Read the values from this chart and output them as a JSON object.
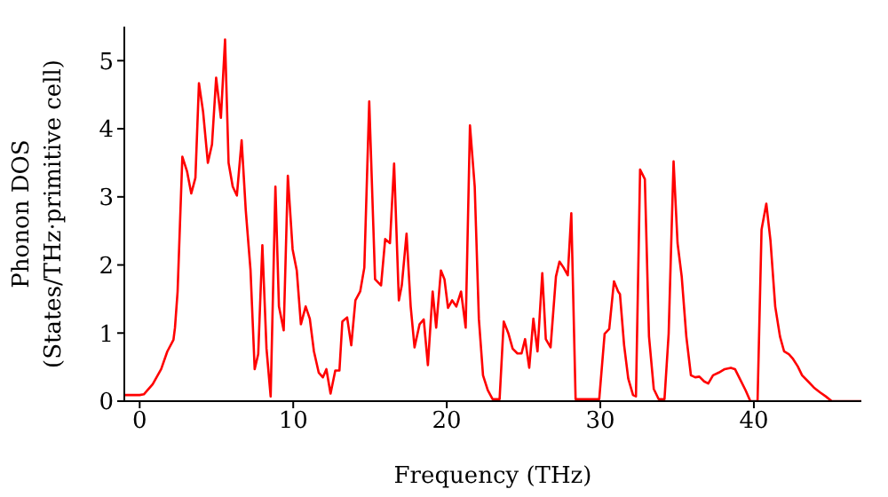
{
  "chart_data": {
    "type": "line",
    "xlabel": "Frequency (THz)",
    "ylabel": "Phonon DOS\n(States/THz·primitive cell)",
    "xlim": [
      -1,
      47
    ],
    "xticks": [
      0,
      10,
      20,
      30,
      40
    ],
    "ylim": [
      0,
      5.5
    ],
    "yticks": [
      0,
      1,
      2,
      3,
      4,
      5
    ],
    "grid": false,
    "legend": false,
    "marker": "none",
    "line_style": "solid",
    "series": [
      {
        "color": "#ff0000",
        "x": [
          -1,
          0,
          0.27,
          0.85,
          1.4,
          1.8,
          2.2,
          2.3,
          2.47,
          2.78,
          3.09,
          3.36,
          3.63,
          3.86,
          4.13,
          4.44,
          4.71,
          4.98,
          5.29,
          5.56,
          5.79,
          6.06,
          6.33,
          6.64,
          6.91,
          7.22,
          7.49,
          7.72,
          7.99,
          8.26,
          8.53,
          8.84,
          9.07,
          9.38,
          9.65,
          9.96,
          10.23,
          10.5,
          10.81,
          11.08,
          11.35,
          11.66,
          11.93,
          12.16,
          12.43,
          12.74,
          13.01,
          13.2,
          13.51,
          13.78,
          14.05,
          14.36,
          14.63,
          14.95,
          15.33,
          15.72,
          15.99,
          16.3,
          16.57,
          16.88,
          17.07,
          17.38,
          17.65,
          17.9,
          18.23,
          18.5,
          18.77,
          19.08,
          19.31,
          19.62,
          19.85,
          20.08,
          20.35,
          20.62,
          20.93,
          21.23,
          21.51,
          21.82,
          22.09,
          22.36,
          22.67,
          22.98,
          23.44,
          23.71,
          24.02,
          24.29,
          24.6,
          24.87,
          25.1,
          25.37,
          25.64,
          25.91,
          26.22,
          26.45,
          26.76,
          27.11,
          27.34,
          27.61,
          27.88,
          28.11,
          28.39,
          29.93,
          30.28,
          30.58,
          30.89,
          31.16,
          31.28,
          31.55,
          31.82,
          32.13,
          32.32,
          32.59,
          32.9,
          33.17,
          33.48,
          33.8,
          34.18,
          34.45,
          34.77,
          35.03,
          35.3,
          35.6,
          35.9,
          36.18,
          36.45,
          36.76,
          37.03,
          37.34,
          37.72,
          38.1,
          38.5,
          38.77,
          39.08,
          39.46,
          39.77,
          40.24,
          40.5,
          40.81,
          41.08,
          41.39,
          41.7,
          41.97,
          42.28,
          42.55,
          42.86,
          43.14,
          43.53,
          43.91,
          44.3,
          44.68,
          45.07,
          47
        ],
        "values": [
          0.09,
          0.09,
          0.1,
          0.25,
          0.47,
          0.73,
          0.9,
          1.08,
          1.61,
          3.59,
          3.37,
          3.05,
          3.28,
          4.67,
          4.25,
          3.5,
          3.77,
          4.75,
          4.16,
          5.31,
          3.5,
          3.15,
          3.02,
          3.83,
          2.8,
          1.92,
          0.47,
          0.69,
          2.29,
          0.77,
          0.07,
          3.15,
          1.39,
          1.04,
          3.31,
          2.23,
          1.92,
          1.13,
          1.39,
          1.21,
          0.73,
          0.42,
          0.35,
          0.47,
          0.11,
          0.45,
          0.45,
          1.17,
          1.23,
          0.82,
          1.48,
          1.61,
          1.96,
          4.4,
          1.79,
          1.7,
          2.38,
          2.32,
          3.49,
          1.48,
          1.7,
          2.46,
          1.39,
          0.79,
          1.13,
          1.2,
          0.53,
          1.61,
          1.08,
          1.92,
          1.79,
          1.37,
          1.48,
          1.39,
          1.61,
          1.08,
          4.05,
          3.15,
          1.21,
          0.38,
          0.16,
          0.03,
          0.03,
          1.17,
          0.99,
          0.77,
          0.7,
          0.7,
          0.91,
          0.49,
          1.21,
          0.73,
          1.88,
          0.91,
          0.79,
          1.83,
          2.05,
          1.96,
          1.85,
          2.76,
          0.03,
          0.03,
          0.99,
          1.06,
          1.76,
          1.61,
          1.57,
          0.82,
          0.33,
          0.09,
          0.07,
          3.4,
          3.26,
          0.95,
          0.18,
          0.03,
          0.03,
          0.99,
          3.52,
          2.32,
          1.83,
          0.95,
          0.38,
          0.35,
          0.36,
          0.29,
          0.26,
          0.38,
          0.42,
          0.47,
          0.49,
          0.47,
          0.33,
          0.16,
          0,
          0,
          2.52,
          2.9,
          2.36,
          1.39,
          0.95,
          0.73,
          0.69,
          0.62,
          0.51,
          0.38,
          0.29,
          0.2,
          0.13,
          0.07,
          0,
          0
        ]
      }
    ]
  }
}
